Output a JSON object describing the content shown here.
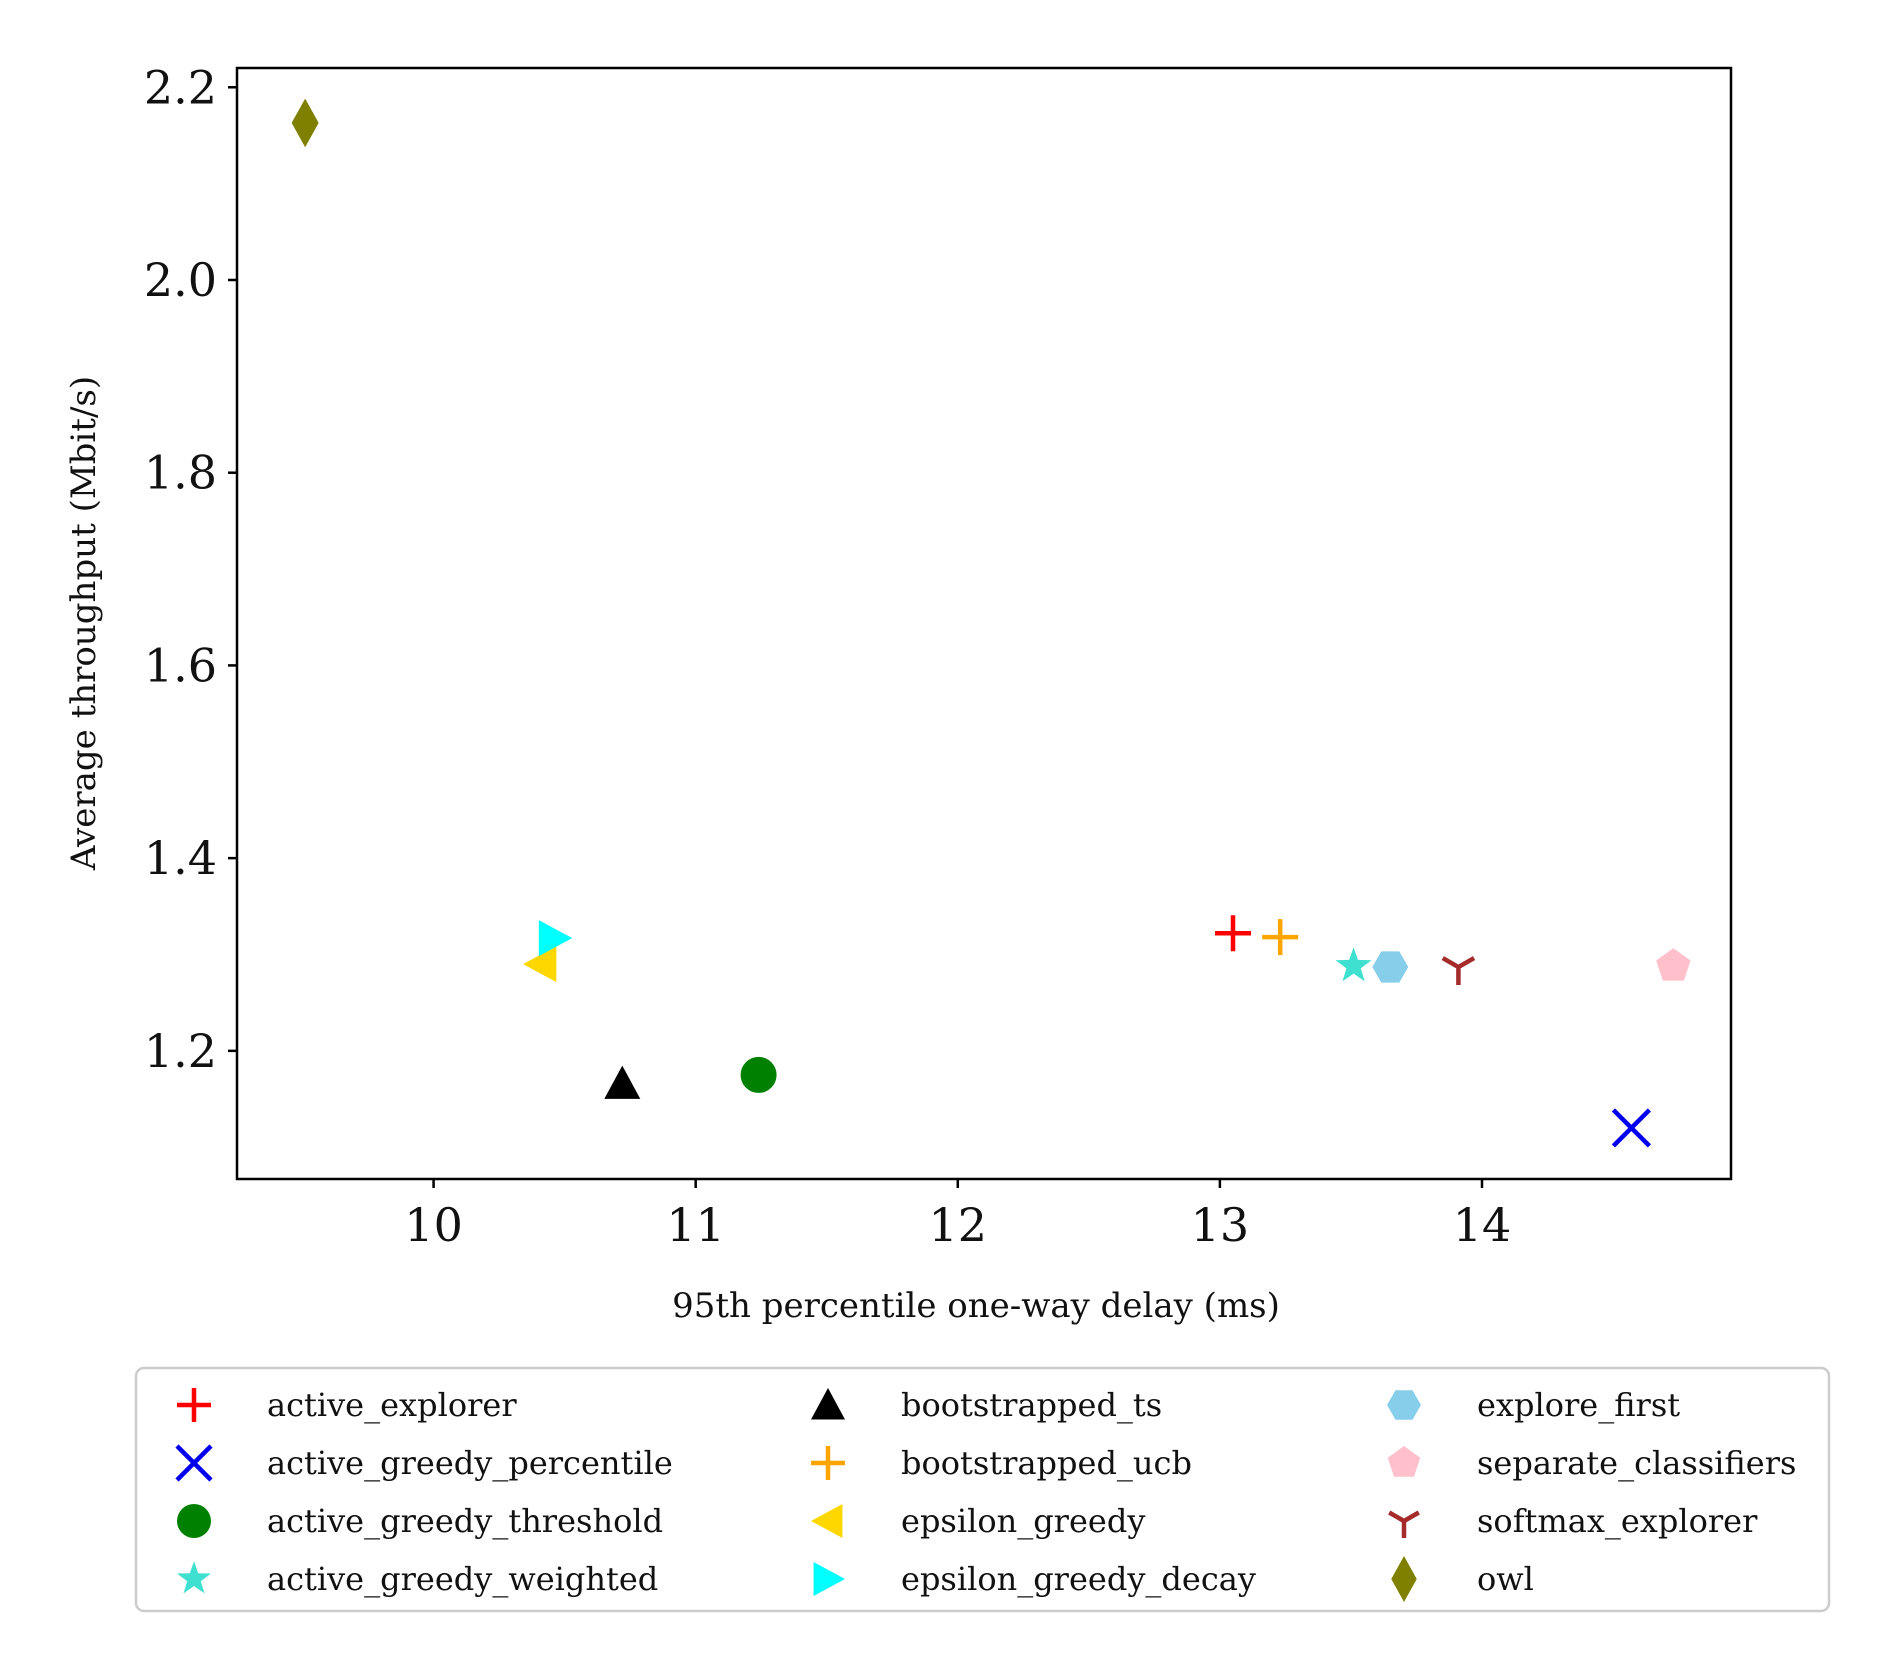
{
  "chart_data": {
    "type": "scatter",
    "title": "",
    "xlabel": "95th percentile one-way delay (ms)",
    "ylabel": "Average throughput (Mbit/s)",
    "xlim": [
      9.25,
      14.95
    ],
    "ylim": [
      1.067,
      2.22
    ],
    "x_ticks": [
      10,
      11,
      12,
      13,
      14
    ],
    "y_ticks": [
      1.2,
      1.4,
      1.6,
      1.8,
      2.0,
      2.2
    ],
    "x_tick_labels": [
      "10",
      "11",
      "12",
      "13",
      "14"
    ],
    "y_tick_labels": [
      "1.2",
      "1.4",
      "1.6",
      "1.8",
      "2.0",
      "2.2"
    ],
    "grid": false,
    "legend_position": "bottom",
    "series": [
      {
        "name": "active_explorer",
        "marker": "plus",
        "color": "#ff0000",
        "x": 13.05,
        "y": 1.322
      },
      {
        "name": "active_greedy_percentile",
        "marker": "x",
        "color": "#0000ee",
        "x": 14.57,
        "y": 1.12
      },
      {
        "name": "active_greedy_threshold",
        "marker": "circle",
        "color": "#008000",
        "x": 11.24,
        "y": 1.175
      },
      {
        "name": "active_greedy_weighted",
        "marker": "star",
        "color": "#40e0d0",
        "x": 13.51,
        "y": 1.288
      },
      {
        "name": "bootstrapped_ts",
        "marker": "triangle-up",
        "color": "#000000",
        "x": 10.72,
        "y": 1.166
      },
      {
        "name": "bootstrapped_ucb",
        "marker": "plus",
        "color": "#ffa500",
        "x": 13.23,
        "y": 1.318
      },
      {
        "name": "epsilon_greedy",
        "marker": "triangle-left",
        "color": "#ffd700",
        "x": 10.41,
        "y": 1.29
      },
      {
        "name": "epsilon_greedy_decay",
        "marker": "triangle-right",
        "color": "#00ffff",
        "x": 10.46,
        "y": 1.317
      },
      {
        "name": "explore_first",
        "marker": "hexagon",
        "color": "#87ceeb",
        "x": 13.65,
        "y": 1.287
      },
      {
        "name": "separate_classifiers",
        "marker": "pentagon",
        "color": "#ffc0cb",
        "x": 14.73,
        "y": 1.288
      },
      {
        "name": "softmax_explorer",
        "marker": "tri-down",
        "color": "#a52a2a",
        "x": 13.91,
        "y": 1.287
      },
      {
        "name": "owl",
        "marker": "diamond",
        "color": "#808000",
        "x": 9.51,
        "y": 2.163
      }
    ],
    "legend_order": [
      "active_explorer",
      "active_greedy_percentile",
      "active_greedy_threshold",
      "active_greedy_weighted",
      "bootstrapped_ts",
      "bootstrapped_ucb",
      "epsilon_greedy",
      "epsilon_greedy_decay",
      "explore_first",
      "separate_classifiers",
      "softmax_explorer",
      "owl"
    ]
  }
}
